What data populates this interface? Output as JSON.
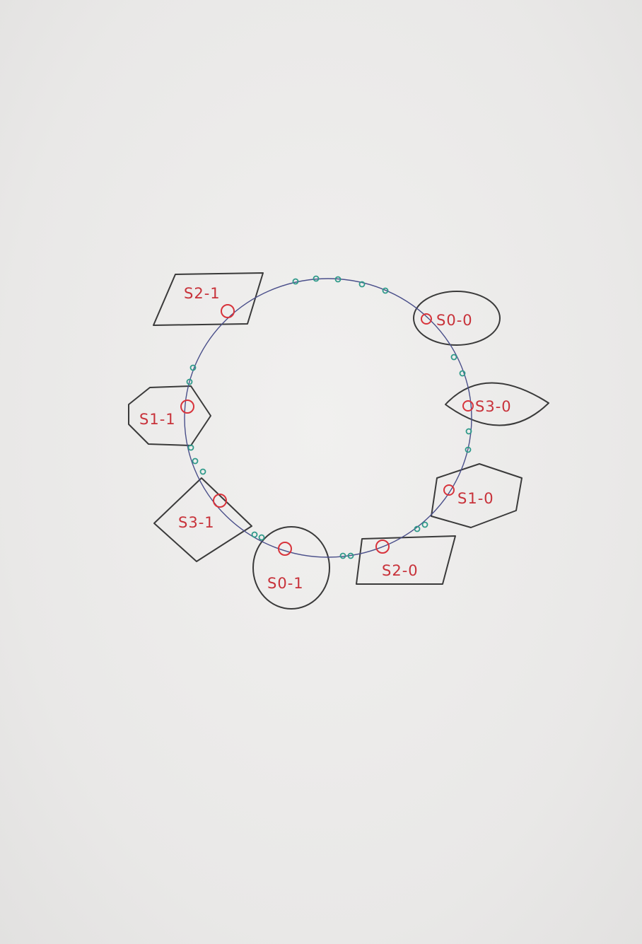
{
  "diagram": {
    "nodes": [
      {
        "id": "s0-0",
        "label": "S0-0",
        "shape": "ellipse"
      },
      {
        "id": "s3-0",
        "label": "S3-0",
        "shape": "leaf"
      },
      {
        "id": "s1-0",
        "label": "S1-0",
        "shape": "hexagon"
      },
      {
        "id": "s2-0",
        "label": "S2-0",
        "shape": "parallelogram"
      },
      {
        "id": "s0-1",
        "label": "S0-1",
        "shape": "circle"
      },
      {
        "id": "s3-1",
        "label": "S3-1",
        "shape": "diamond"
      },
      {
        "id": "s1-1",
        "label": "S1-1",
        "shape": "hexagon"
      },
      {
        "id": "s2-1",
        "label": "S2-1",
        "shape": "parallelogram"
      }
    ],
    "colors": {
      "ring": "#4a4f8a",
      "virtual_node": "#d8333b",
      "key_marker": "#2f9a8a",
      "label": "#c8323a",
      "shape_outline": "#3a3a3a"
    }
  }
}
